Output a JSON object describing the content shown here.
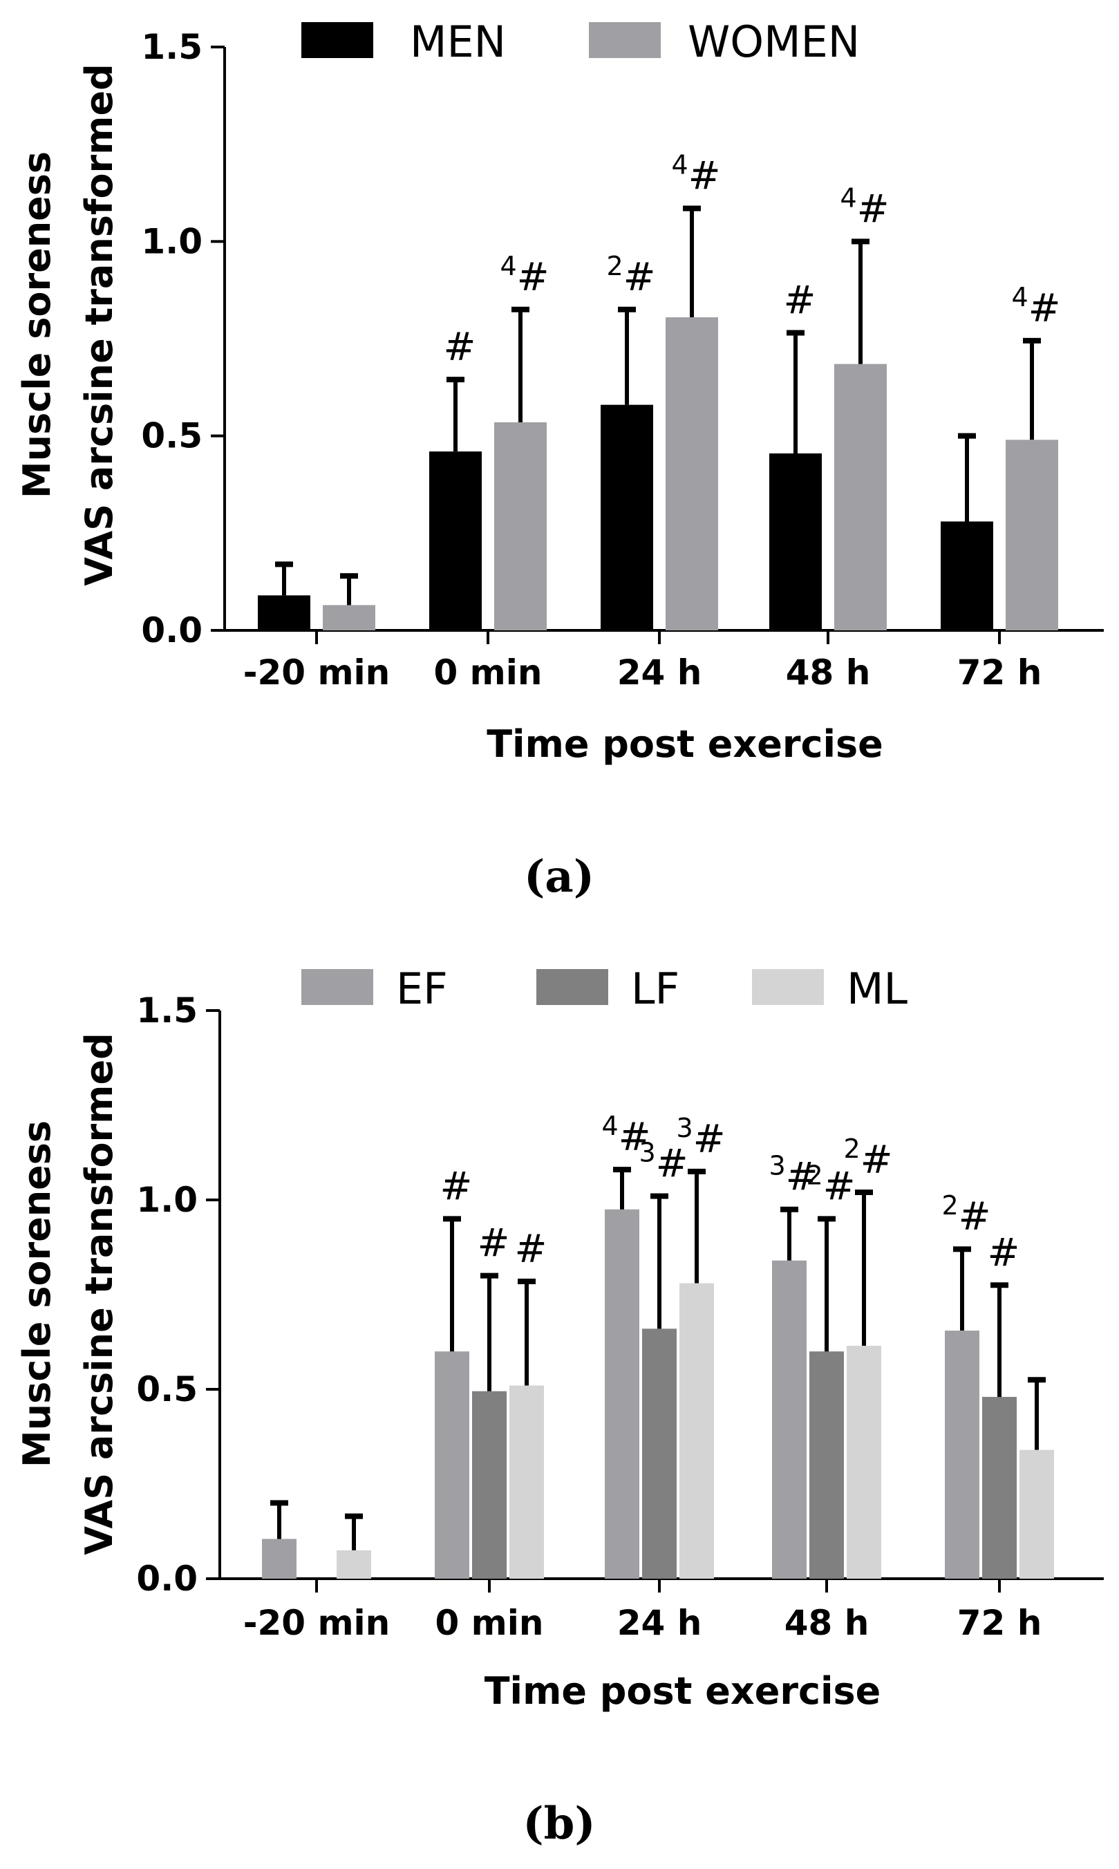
{
  "chart_data": [
    {
      "type": "bar",
      "panel_label": "(a)",
      "ylabel_lines": [
        "Muscle soreness",
        "VAS arcsine transformed"
      ],
      "xlabel": "Time post exercise",
      "ylim": [
        0,
        1.5
      ],
      "yticks": [
        "0.0",
        "0.5",
        "1.0",
        "1.5"
      ],
      "categories": [
        "-20 min",
        "0 min",
        "24 h",
        "48 h",
        "72 h"
      ],
      "legend_position": "top",
      "series": [
        {
          "name": "MEN",
          "color": "#000000",
          "values": [
            0.09,
            0.46,
            0.58,
            0.455,
            0.28
          ],
          "errors": [
            0.08,
            0.185,
            0.245,
            0.31,
            0.22
          ],
          "annotations": [
            {
              "sup": "",
              "mark": ""
            },
            {
              "sup": "",
              "mark": "#"
            },
            {
              "sup": "2",
              "mark": "#"
            },
            {
              "sup": "",
              "mark": "#"
            },
            {
              "sup": "",
              "mark": ""
            }
          ]
        },
        {
          "name": "WOMEN",
          "color": "#a0a0a4",
          "values": [
            0.065,
            0.535,
            0.805,
            0.685,
            0.49
          ],
          "errors": [
            0.075,
            0.29,
            0.28,
            0.315,
            0.255
          ],
          "annotations": [
            {
              "sup": "",
              "mark": ""
            },
            {
              "sup": "4",
              "mark": "#"
            },
            {
              "sup": "4",
              "mark": "#"
            },
            {
              "sup": "4",
              "mark": "#"
            },
            {
              "sup": "4",
              "mark": "#"
            }
          ]
        }
      ]
    },
    {
      "type": "bar",
      "panel_label": "(b)",
      "ylabel_lines": [
        "Muscle soreness",
        "VAS arcsine transformed"
      ],
      "xlabel": "Time post exercise",
      "ylim": [
        0,
        1.5
      ],
      "yticks": [
        "0.0",
        "0.5",
        "1.0",
        "1.5"
      ],
      "categories": [
        "-20 min",
        "0 min",
        "24 h",
        "48 h",
        "72 h"
      ],
      "legend_position": "top",
      "series": [
        {
          "name": "EF",
          "color": "#a0a0a4",
          "values": [
            0.105,
            0.6,
            0.975,
            0.84,
            0.655
          ],
          "errors": [
            0.095,
            0.35,
            0.105,
            0.135,
            0.215
          ],
          "annotations": [
            {
              "sup": "",
              "mark": ""
            },
            {
              "sup": "",
              "mark": "#"
            },
            {
              "sup": "4",
              "mark": "#"
            },
            {
              "sup": "3",
              "mark": "#"
            },
            {
              "sup": "2",
              "mark": "#"
            }
          ]
        },
        {
          "name": "LF",
          "color": "#808080",
          "values": [
            0,
            0.495,
            0.66,
            0.6,
            0.48
          ],
          "errors": [
            0,
            0.305,
            0.35,
            0.35,
            0.295
          ],
          "annotations": [
            {
              "sup": "",
              "mark": ""
            },
            {
              "sup": "",
              "mark": "#"
            },
            {
              "sup": "3",
              "mark": "#"
            },
            {
              "sup": "2",
              "mark": "#"
            },
            {
              "sup": "",
              "mark": "#"
            }
          ]
        },
        {
          "name": "ML",
          "color": "#d4d4d4",
          "values": [
            0.075,
            0.51,
            0.78,
            0.615,
            0.34
          ],
          "errors": [
            0.09,
            0.275,
            0.295,
            0.405,
            0.185
          ],
          "annotations": [
            {
              "sup": "",
              "mark": ""
            },
            {
              "sup": "",
              "mark": "#"
            },
            {
              "sup": "3",
              "mark": "#"
            },
            {
              "sup": "2",
              "mark": "#"
            },
            {
              "sup": "",
              "mark": ""
            }
          ]
        }
      ]
    }
  ]
}
